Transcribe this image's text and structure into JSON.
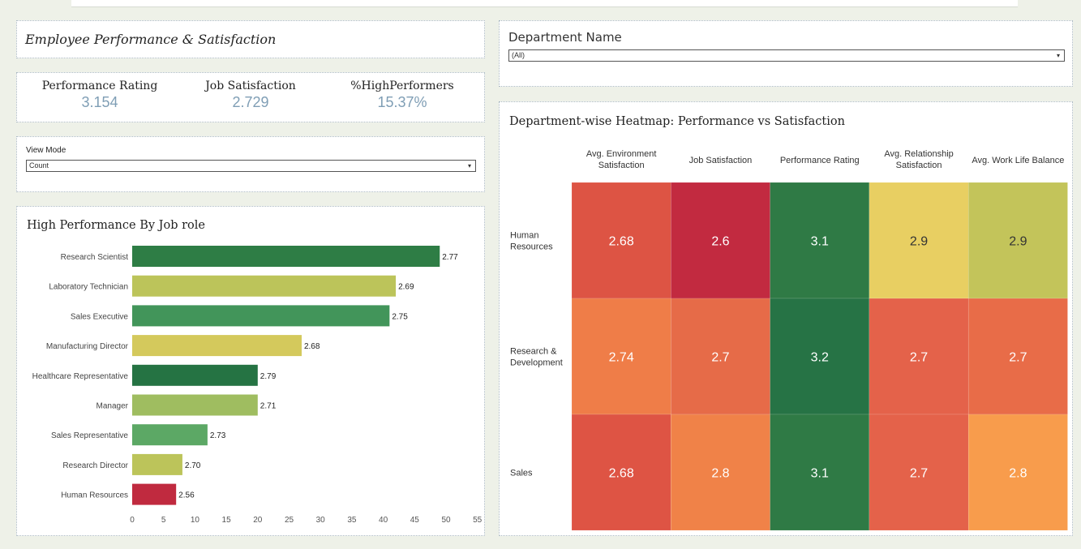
{
  "dashboard": {
    "title": "Employee Performance & Satisfaction"
  },
  "kpis": [
    {
      "label": "Performance Rating",
      "value": "3.154"
    },
    {
      "label": "Job Satisfaction",
      "value": "2.729"
    },
    {
      "label": "%HighPerformers",
      "value": "15.37%"
    }
  ],
  "view_mode": {
    "label": "View Mode",
    "selected": "Count",
    "arrow": "▾"
  },
  "department_filter": {
    "label": "Department Name",
    "selected": "(All)",
    "arrow": "▾"
  },
  "chart_data": [
    {
      "type": "bar",
      "orientation": "horizontal",
      "title": "High Performance By Job role",
      "categories": [
        "Research Scientist",
        "Laboratory Technician",
        "Sales Executive",
        "Manufacturing Director",
        "Healthcare Representative",
        "Manager",
        "Sales Representative",
        "Research Director",
        "Human Resources"
      ],
      "values": [
        49,
        42,
        41,
        27,
        20,
        20,
        12,
        8,
        7
      ],
      "data_labels": [
        "2.77",
        "2.69",
        "2.75",
        "2.68",
        "2.79",
        "2.71",
        "2.73",
        "2.70",
        "2.56"
      ],
      "colors": [
        "#2e7d45",
        "#bcc45a",
        "#42955a",
        "#d4c95c",
        "#257343",
        "#9fbd60",
        "#5ca865",
        "#bcc45a",
        "#c02a3f"
      ],
      "xticks": [
        0,
        5,
        10,
        15,
        20,
        25,
        30,
        35,
        40,
        45,
        50,
        55
      ],
      "xlim": [
        0,
        55
      ],
      "xlabel": "",
      "ylabel": ""
    },
    {
      "type": "heatmap",
      "title": "Department-wise Heatmap: Performance vs Satisfaction",
      "columns": [
        "Avg. Environment Satisfaction",
        "Job Satisfaction",
        "Performance Rating",
        "Avg. Relationship Satisfaction",
        "Avg. Work Life Balance"
      ],
      "column_lines": [
        [
          "Avg. Environment",
          "Satisfaction"
        ],
        [
          "Job Satisfaction"
        ],
        [
          "Performance Rating"
        ],
        [
          "Avg. Relationship",
          "Satisfaction"
        ],
        [
          "Avg. Work Life Balance"
        ]
      ],
      "rows": [
        "Human Resources",
        "Research & Development",
        "Sales"
      ],
      "row_lines": [
        [
          "Human",
          "Resources"
        ],
        [
          "Research &",
          "Development"
        ],
        [
          "Sales"
        ]
      ],
      "values": [
        [
          2.68,
          2.6,
          3.1,
          2.9,
          2.9
        ],
        [
          2.74,
          2.7,
          3.2,
          2.7,
          2.7
        ],
        [
          2.68,
          2.8,
          3.1,
          2.7,
          2.8
        ]
      ],
      "labels": [
        [
          "2.68",
          "2.6",
          "3.1",
          "2.9",
          "2.9"
        ],
        [
          "2.74",
          "2.7",
          "3.2",
          "2.7",
          "2.7"
        ],
        [
          "2.68",
          "2.8",
          "3.1",
          "2.7",
          "2.8"
        ]
      ],
      "colors": [
        [
          "#dd5444",
          "#c22a40",
          "#2f7a45",
          "#e8cf62",
          "#c3c45a"
        ],
        [
          "#ef7d48",
          "#e66b48",
          "#267345",
          "#e4624a",
          "#e86c48"
        ],
        [
          "#de5444",
          "#f08248",
          "#2f7a45",
          "#e4624a",
          "#f89c4c"
        ]
      ]
    }
  ]
}
